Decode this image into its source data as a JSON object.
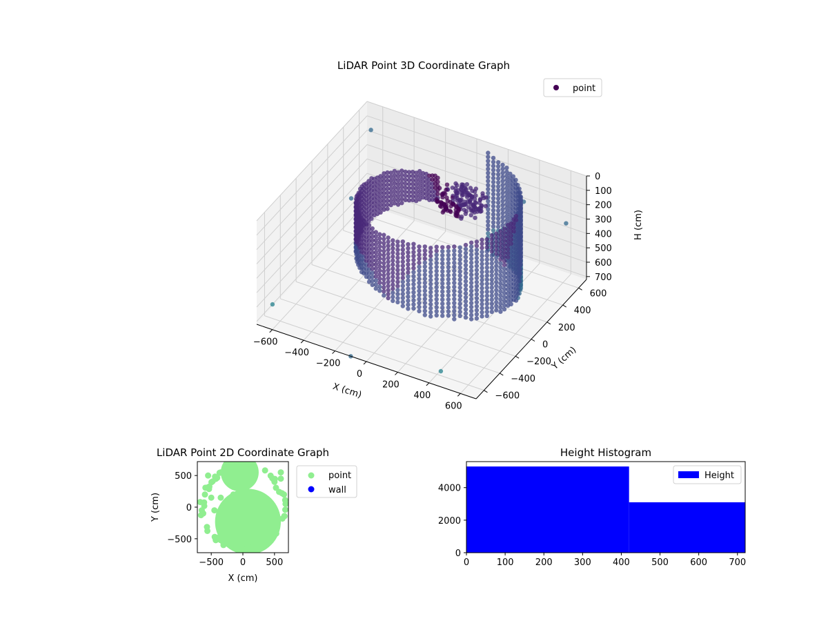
{
  "chart_data": [
    {
      "type": "scatter",
      "projection": "3d",
      "title": "LiDAR Point 3D Coordinate Graph",
      "xlabel": "X (cm)",
      "ylabel": "Y (cm)",
      "zlabel": "H (cm)",
      "xlim": [
        -700,
        700
      ],
      "ylim": [
        -700,
        700
      ],
      "zlim": [
        0,
        720
      ],
      "z_inverted": true,
      "grid": true,
      "legend_position": "top-right",
      "xticks": [
        -600,
        -400,
        -200,
        0,
        200,
        400,
        600
      ],
      "xtick_labels": [
        "−600",
        "−400",
        "−200",
        "0",
        "200",
        "400",
        "600"
      ],
      "yticks": [
        -600,
        -400,
        -200,
        0,
        200,
        400,
        600
      ],
      "ytick_labels": [
        "−600",
        "−400",
        "−200",
        "0",
        "200",
        "400",
        "600"
      ],
      "zticks": [
        0,
        100,
        200,
        300,
        400,
        500,
        600,
        700
      ],
      "ztick_labels": [
        "0",
        "100",
        "200",
        "300",
        "400",
        "500",
        "600",
        "700"
      ],
      "colormap": [
        "#440154",
        "#482878",
        "#3e4989",
        "#31688e",
        "#26828e",
        "#1f9e89",
        "#35b779",
        "#6ece58"
      ],
      "series": [
        {
          "name": "point",
          "color": "#440154",
          "wall_arc_start_deg": 95,
          "wall_arc_end_deg": 440,
          "wall_radius_start": 250,
          "wall_radius_end": 620,
          "wall_height_top": 0,
          "wall_height_bottom": 700,
          "inner_cluster": {
            "x": 150,
            "y": 200,
            "z": 50,
            "radius": 150
          },
          "outliers": [
            {
              "x": -650,
              "y": 650,
              "z": 150
            },
            {
              "x": -600,
              "y": 300,
              "z": 400
            },
            {
              "x": 620,
              "y": 600,
              "z": 300
            },
            {
              "x": 450,
              "y": -650,
              "z": 650
            },
            {
              "x": -700,
              "y": -500,
              "z": 700
            },
            {
              "x": 350,
              "y": 600,
              "z": 250
            },
            {
              "x": -100,
              "y": -700,
              "z": 720
            }
          ]
        }
      ]
    },
    {
      "type": "scatter",
      "title": "LiDAR Point 2D Coordinate Graph",
      "xlabel": "X (cm)",
      "ylabel": "Y (cm)",
      "xlim": [
        -720,
        720
      ],
      "ylim": [
        -720,
        720
      ],
      "xticks": [
        -500,
        0,
        500
      ],
      "xtick_labels": [
        "−500",
        "0",
        "500"
      ],
      "yticks": [
        -500,
        0,
        500
      ],
      "ytick_labels": [
        "−500",
        "0",
        "500"
      ],
      "legend_position": "outside-right",
      "series": [
        {
          "name": "point",
          "color": "#90ee90",
          "lower_disk": {
            "x": 80,
            "y": -230,
            "radius": 520
          },
          "upper_region": {
            "x": -50,
            "y": 550,
            "radius": 300
          },
          "scattered": [
            {
              "x": -600,
              "y": 200
            },
            {
              "x": -500,
              "y": 150
            },
            {
              "x": -350,
              "y": 150
            },
            {
              "x": -150,
              "y": 200
            },
            {
              "x": -350,
              "y": 550
            },
            {
              "x": -550,
              "y": 500
            },
            {
              "x": 600,
              "y": 550
            },
            {
              "x": 500,
              "y": 400
            },
            {
              "x": -650,
              "y": -50
            },
            {
              "x": -450,
              "y": -50
            },
            {
              "x": 650,
              "y": 200
            },
            {
              "x": 600,
              "y": 450
            }
          ]
        },
        {
          "name": "wall",
          "color": "#0000ff",
          "points": []
        }
      ]
    },
    {
      "type": "bar",
      "subtype": "histogram",
      "title": "Height Histogram",
      "xlim": [
        0,
        720
      ],
      "ylim": [
        0,
        5600
      ],
      "xticks": [
        0,
        100,
        200,
        300,
        400,
        500,
        600,
        700
      ],
      "xtick_labels": [
        "0",
        "100",
        "200",
        "300",
        "400",
        "500",
        "600",
        "700"
      ],
      "yticks": [
        0,
        2000,
        4000
      ],
      "ytick_labels": [
        "0",
        "2000",
        "4000"
      ],
      "legend_position": "top-right",
      "series": [
        {
          "name": "Height",
          "color": "#0000ff",
          "bins": [
            {
              "x0": 0,
              "x1": 420,
              "count": 5300
            },
            {
              "x0": 420,
              "x1": 720,
              "count": 3100
            }
          ]
        }
      ]
    }
  ]
}
